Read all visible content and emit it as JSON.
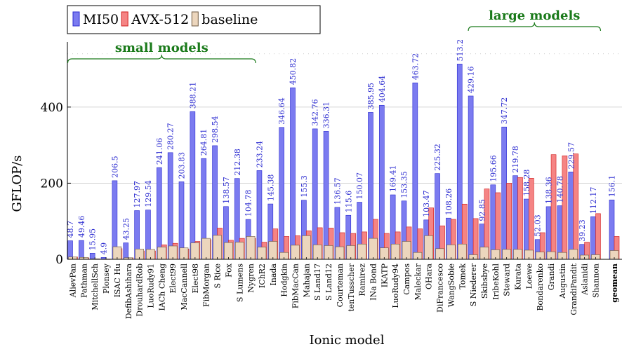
{
  "chart_data": {
    "type": "bar",
    "title": "",
    "xlabel": "Ionic model",
    "ylabel": "GFLOP/s",
    "ylim": [
      0,
      520
    ],
    "yticks": [
      0,
      200,
      400
    ],
    "grid": true,
    "legend_position": "top-left",
    "categories": [
      "AlievPan",
      "Pathman",
      "MitchellSch",
      "Plonsey",
      "ISAC Hu",
      "DefibAshihara",
      "DrouhardRob",
      "LuoRudy91",
      "IACh Cheng",
      "Elect99",
      "MacCannell",
      "Elect98",
      "FibMorgan",
      "S Rice",
      "Fox",
      "S Lumens",
      "Nygren",
      "IChR2",
      "Inada",
      "Hodgkin",
      "FibMacCan",
      "Mahajan",
      "S Land17",
      "S Land12",
      "Courteman",
      "tenTusscher",
      "Ramirez",
      "INa Bond",
      "IKATP",
      "LuoRudy94",
      "Campos",
      "Maleckar",
      "OHara",
      "DiFrancesco",
      "WangSobie",
      "Tomek",
      "S Niederer",
      "Skibsbye",
      "IribeKohl",
      "Steward",
      "Kurata",
      "Loewe",
      "Bondarenko",
      "Grandi",
      "Augustin",
      "GrandiPandit",
      "Aslanidi",
      "Shannon",
      "geomean"
    ],
    "series": [
      {
        "name": "MI50",
        "color": "#7b7bf0",
        "values": [
          48.7,
          49.46,
          15.95,
          4.9,
          206.5,
          43.25,
          127.97,
          129.54,
          241.06,
          280.27,
          203.83,
          388.21,
          264.81,
          298.54,
          138.57,
          212.38,
          104.78,
          233.24,
          145.38,
          346.64,
          450.82,
          155.3,
          342.76,
          336.31,
          136.57,
          115.6,
          150.07,
          385.95,
          404.64,
          169.41,
          153.35,
          463.72,
          103.47,
          225.32,
          108.26,
          513.2,
          429.16,
          92.85,
          195.66,
          347.72,
          219.78,
          158.28,
          52.03,
          138.36,
          140.78,
          229.57,
          39.23,
          112.17,
          156.1
        ]
      },
      {
        "name": "AVX-512",
        "color": "#f58484",
        "values": [
          6,
          4,
          1,
          0.5,
          28,
          4,
          22,
          22,
          38,
          42,
          27,
          47,
          52,
          82,
          50,
          55,
          55,
          45,
          80,
          60,
          62,
          75,
          83,
          82,
          70,
          68,
          72,
          105,
          68,
          72,
          85,
          80,
          135,
          88,
          105,
          145,
          107,
          185,
          175,
          200,
          215,
          213,
          70,
          275,
          272,
          277,
          45,
          120,
          60
        ]
      },
      {
        "name": "baseline",
        "color": "#ecd6bd",
        "values": [
          6,
          5,
          1,
          0.5,
          33,
          4,
          27,
          26,
          32,
          35,
          30,
          43,
          55,
          63,
          44,
          45,
          60,
          32,
          47,
          18,
          37,
          62,
          38,
          36,
          33,
          36,
          40,
          55,
          30,
          40,
          47,
          18,
          62,
          28,
          38,
          40,
          12,
          32,
          25,
          26,
          26,
          24,
          19,
          20,
          18,
          26,
          11,
          12,
          23
        ]
      }
    ],
    "value_labels": [
      "48.7",
      "49.46",
      "15.95",
      "4.9",
      "206.5",
      "43.25",
      "127.97",
      "129.54",
      "241.06",
      "280.27",
      "203.83",
      "388.21",
      "264.81",
      "298.54",
      "138.57",
      "212.38",
      "104.78",
      "233.24",
      "145.38",
      "346.64",
      "450.82",
      "155.3",
      "342.76",
      "336.31",
      "136.57",
      "115.6",
      "150.07",
      "385.95",
      "404.64",
      "169.41",
      "153.35",
      "463.72",
      "103.47",
      "225.32",
      "108.26",
      "513.2",
      "429.16",
      "92.85",
      "195.66",
      "347.72",
      "219.78",
      "158.28",
      "52.03",
      "138.36",
      "140.78",
      "229.57",
      "39.23",
      "112.17",
      "156.1"
    ],
    "annotations": [
      {
        "text": "small models",
        "color": "#1a7a1a",
        "from": "AlievPan",
        "to": "Nygren"
      },
      {
        "text": "large models",
        "color": "#1a7a1a",
        "from": "S Niederer",
        "to": "Shannon"
      }
    ]
  }
}
